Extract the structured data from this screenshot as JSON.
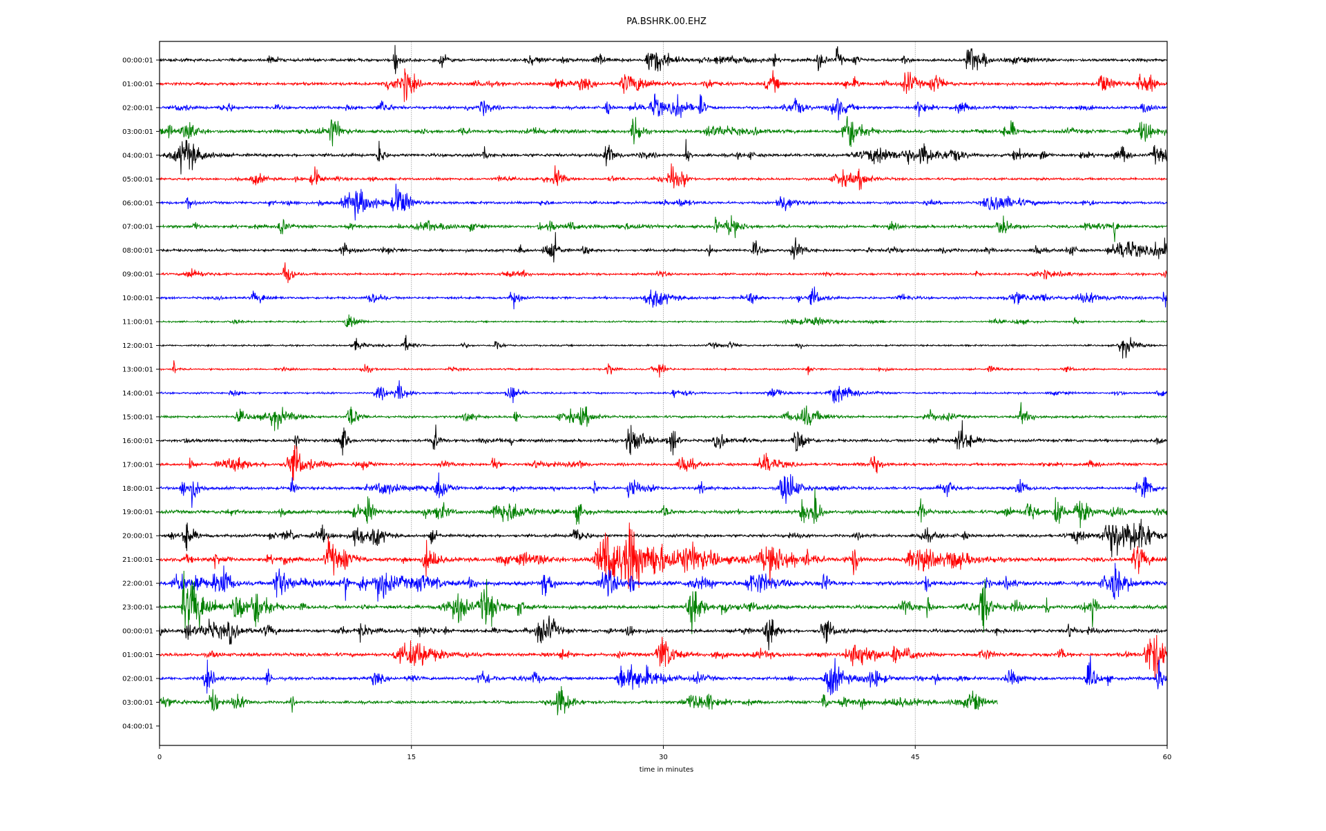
{
  "chart_data": {
    "type": "line",
    "title": "PA.BSHRK.00.EHZ",
    "xlabel": "time in minutes",
    "ylabel": "",
    "xlim": [
      0,
      60
    ],
    "xticks": [
      0,
      15,
      30,
      45,
      60
    ],
    "xtick_labels": [
      "0",
      "15",
      "30",
      "45",
      "60"
    ],
    "grid": "vertical at 15, 30, 45",
    "colors": [
      "#000000",
      "#ff0000",
      "#0000ff",
      "#008000"
    ],
    "rows": [
      {
        "label": "00:00:01",
        "activity": 0.5,
        "end": 60
      },
      {
        "label": "01:00:01",
        "activity": 0.55,
        "end": 60
      },
      {
        "label": "02:00:01",
        "activity": 0.5,
        "end": 60
      },
      {
        "label": "03:00:01",
        "activity": 0.6,
        "end": 60
      },
      {
        "label": "04:00:01",
        "activity": 0.6,
        "end": 60
      },
      {
        "label": "05:00:01",
        "activity": 0.35,
        "end": 60
      },
      {
        "label": "06:00:01",
        "activity": 0.4,
        "end": 60
      },
      {
        "label": "07:00:01",
        "activity": 0.5,
        "end": 60
      },
      {
        "label": "08:00:01",
        "activity": 0.45,
        "end": 60
      },
      {
        "label": "09:00:01",
        "activity": 0.3,
        "end": 60
      },
      {
        "label": "10:00:01",
        "activity": 0.35,
        "end": 60
      },
      {
        "label": "11:00:01",
        "activity": 0.1,
        "end": 60
      },
      {
        "label": "12:00:01",
        "activity": 0.12,
        "end": 60
      },
      {
        "label": "13:00:01",
        "activity": 0.15,
        "end": 60
      },
      {
        "label": "14:00:01",
        "activity": 0.2,
        "end": 60
      },
      {
        "label": "15:00:01",
        "activity": 0.35,
        "end": 60
      },
      {
        "label": "16:00:01",
        "activity": 0.5,
        "end": 60
      },
      {
        "label": "17:00:01",
        "activity": 0.45,
        "end": 60
      },
      {
        "label": "18:00:01",
        "activity": 0.5,
        "end": 60
      },
      {
        "label": "19:00:01",
        "activity": 0.65,
        "end": 60
      },
      {
        "label": "20:00:01",
        "activity": 0.55,
        "end": 60
      },
      {
        "label": "21:00:01",
        "activity": 0.85,
        "end": 60
      },
      {
        "label": "22:00:01",
        "activity": 0.9,
        "end": 60
      },
      {
        "label": "23:00:01",
        "activity": 0.75,
        "end": 60
      },
      {
        "label": "00:00:01",
        "activity": 0.65,
        "end": 60
      },
      {
        "label": "01:00:01",
        "activity": 0.7,
        "end": 60
      },
      {
        "label": "02:00:01",
        "activity": 0.6,
        "end": 60
      },
      {
        "label": "03:00:01",
        "activity": 0.5,
        "end": 49.9
      },
      {
        "label": "04:00:01",
        "activity": 0,
        "end": 0
      }
    ]
  }
}
